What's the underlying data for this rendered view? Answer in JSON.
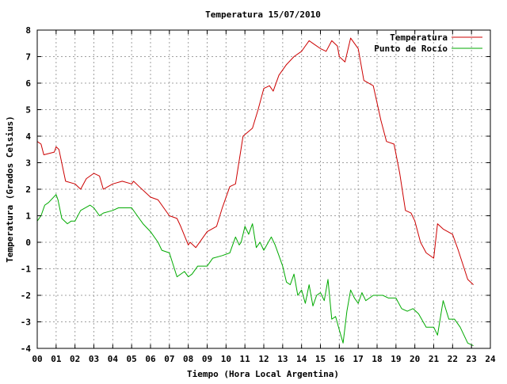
{
  "chart_data": {
    "type": "line",
    "title": "Temperatura 15/07/2010",
    "xlabel": "Tiempo (Hora Local Argentina)",
    "ylabel": "Temperatura (Grados Celsius)",
    "xlim": [
      0,
      24
    ],
    "ylim": [
      -4,
      8
    ],
    "x_ticks": [
      "00",
      "01",
      "02",
      "03",
      "04",
      "05",
      "06",
      "07",
      "08",
      "09",
      "10",
      "11",
      "12",
      "13",
      "14",
      "15",
      "16",
      "17",
      "18",
      "19",
      "20",
      "21",
      "22",
      "23",
      "24"
    ],
    "y_ticks": [
      "-4",
      "-3",
      "-2",
      "-1",
      "0",
      "1",
      "2",
      "3",
      "4",
      "5",
      "6",
      "7",
      "8"
    ],
    "grid": true,
    "legend_position": "top-right",
    "series": [
      {
        "name": "Temperatura",
        "color": "#cc0000",
        "x": [
          0.0,
          0.2,
          0.35,
          0.9,
          1.0,
          1.15,
          1.5,
          2.0,
          2.3,
          2.6,
          3.0,
          3.3,
          3.5,
          4.0,
          4.5,
          5.0,
          5.1,
          5.4,
          6.0,
          6.4,
          7.0,
          7.4,
          7.6,
          8.0,
          8.1,
          8.4,
          9.0,
          9.5,
          9.8,
          10.2,
          10.5,
          10.9,
          11.4,
          11.7,
          12.0,
          12.3,
          12.5,
          12.8,
          13.2,
          13.6,
          14.0,
          14.2,
          14.4,
          14.6,
          15.0,
          15.3,
          15.6,
          15.9,
          16.0,
          16.3,
          16.6,
          17.0,
          17.3,
          17.8,
          18.2,
          18.5,
          18.9,
          19.2,
          19.5,
          19.8,
          20.0,
          20.3,
          20.6,
          21.0,
          21.2,
          21.5,
          22.0,
          22.3,
          22.8,
          23.1
        ],
        "values": [
          3.8,
          3.7,
          3.3,
          3.4,
          3.6,
          3.5,
          2.3,
          2.2,
          2.0,
          2.4,
          2.6,
          2.5,
          2.0,
          2.2,
          2.3,
          2.2,
          2.3,
          2.1,
          1.7,
          1.6,
          1.0,
          0.9,
          0.6,
          -0.1,
          0.0,
          -0.2,
          0.4,
          0.6,
          1.3,
          2.1,
          2.2,
          4.0,
          4.3,
          5.0,
          5.8,
          5.9,
          5.7,
          6.3,
          6.7,
          7.0,
          7.2,
          7.4,
          7.6,
          7.5,
          7.3,
          7.2,
          7.6,
          7.4,
          7.0,
          6.8,
          7.7,
          7.3,
          6.1,
          5.9,
          4.6,
          3.8,
          3.7,
          2.6,
          1.2,
          1.1,
          0.8,
          0.0,
          -0.4,
          -0.6,
          0.7,
          0.5,
          0.3,
          -0.3,
          -1.4,
          -1.6
        ]
      },
      {
        "name": "Punto de Rocío",
        "color": "#00aa00",
        "x": [
          0.0,
          0.2,
          0.4,
          0.6,
          1.0,
          1.1,
          1.3,
          1.6,
          1.8,
          2.0,
          2.3,
          2.8,
          3.0,
          3.3,
          3.5,
          4.0,
          4.3,
          4.6,
          5.0,
          5.3,
          5.6,
          6.0,
          6.4,
          6.6,
          7.0,
          7.4,
          7.8,
          8.0,
          8.2,
          8.5,
          9.0,
          9.3,
          9.8,
          10.2,
          10.5,
          10.7,
          10.8,
          11.0,
          11.2,
          11.4,
          11.6,
          11.8,
          12.0,
          12.4,
          12.6,
          12.8,
          13.0,
          13.2,
          13.4,
          13.6,
          13.8,
          14.0,
          14.2,
          14.4,
          14.6,
          14.8,
          15.0,
          15.2,
          15.4,
          15.6,
          15.8,
          16.0,
          16.2,
          16.4,
          16.6,
          16.8,
          17.0,
          17.2,
          17.4,
          17.6,
          17.8,
          18.0,
          18.3,
          18.6,
          19.0,
          19.3,
          19.6,
          19.9,
          20.2,
          20.6,
          21.0,
          21.2,
          21.5,
          21.8,
          22.1,
          22.4,
          22.8,
          23.1
        ],
        "values": [
          0.8,
          1.0,
          1.4,
          1.5,
          1.8,
          1.6,
          0.9,
          0.7,
          0.8,
          0.8,
          1.2,
          1.4,
          1.3,
          1.0,
          1.1,
          1.2,
          1.3,
          1.3,
          1.3,
          1.0,
          0.7,
          0.4,
          0.0,
          -0.3,
          -0.4,
          -1.3,
          -1.1,
          -1.3,
          -1.2,
          -0.9,
          -0.9,
          -0.6,
          -0.5,
          -0.4,
          0.2,
          -0.1,
          0.0,
          0.6,
          0.3,
          0.7,
          -0.2,
          0.0,
          -0.3,
          0.2,
          -0.1,
          -0.5,
          -0.9,
          -1.5,
          -1.6,
          -1.2,
          -2.0,
          -1.8,
          -2.3,
          -1.6,
          -2.4,
          -2.0,
          -1.9,
          -2.2,
          -1.4,
          -2.9,
          -2.8,
          -3.3,
          -3.8,
          -2.6,
          -1.8,
          -2.1,
          -2.3,
          -1.9,
          -2.2,
          -2.1,
          -2.0,
          -2.0,
          -2.0,
          -2.1,
          -2.1,
          -2.5,
          -2.6,
          -2.5,
          -2.7,
          -3.2,
          -3.2,
          -3.5,
          -2.2,
          -2.9,
          -2.9,
          -3.2,
          -3.8,
          -3.9
        ]
      }
    ]
  }
}
